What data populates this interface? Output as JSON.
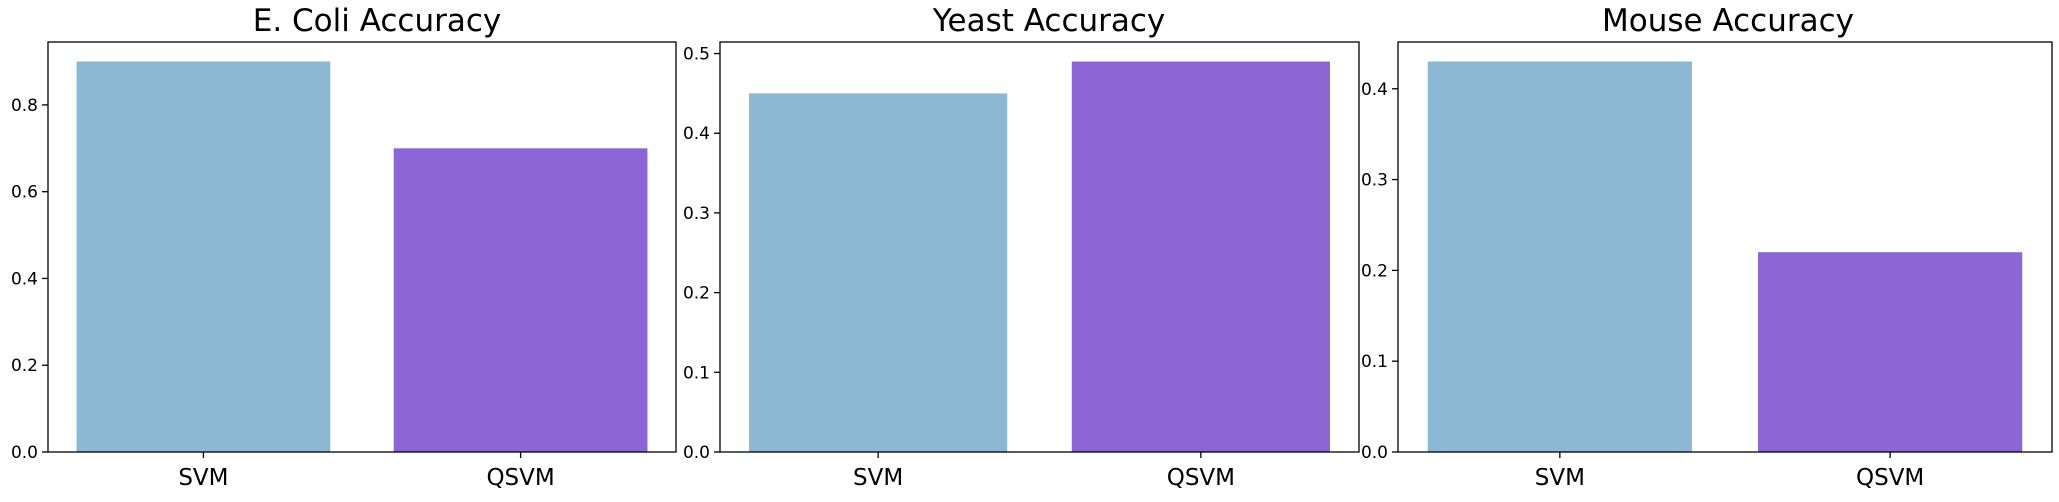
{
  "chart_data": [
    {
      "type": "bar",
      "title": "E. Coli Accuracy",
      "categories": [
        "SVM",
        "QSVM"
      ],
      "values": [
        0.9,
        0.7
      ],
      "colors": [
        "#8cb8d3",
        "#8c66d4"
      ],
      "xlabel": "",
      "ylabel": "",
      "ylim": [
        0,
        0.945
      ],
      "yticks": [
        0.0,
        0.2,
        0.4,
        0.6,
        0.8
      ],
      "ytick_labels": [
        "0.0",
        "0.2",
        "0.4",
        "0.6",
        "0.8"
      ],
      "grid": false
    },
    {
      "type": "bar",
      "title": "Yeast Accuracy",
      "categories": [
        "SVM",
        "QSVM"
      ],
      "values": [
        0.45,
        0.49
      ],
      "colors": [
        "#8cb8d3",
        "#8c66d4"
      ],
      "xlabel": "",
      "ylabel": "",
      "ylim": [
        0,
        0.5145
      ],
      "yticks": [
        0.0,
        0.1,
        0.2,
        0.3,
        0.4,
        0.5
      ],
      "ytick_labels": [
        "0.0",
        "0.1",
        "0.2",
        "0.3",
        "0.4",
        "0.5"
      ],
      "grid": false
    },
    {
      "type": "bar",
      "title": "Mouse Accuracy",
      "categories": [
        "SVM",
        "QSVM"
      ],
      "values": [
        0.43,
        0.22
      ],
      "colors": [
        "#8cb8d3",
        "#8c66d4"
      ],
      "xlabel": "",
      "ylabel": "",
      "ylim": [
        0,
        0.4515
      ],
      "yticks": [
        0.0,
        0.1,
        0.2,
        0.3,
        0.4
      ],
      "ytick_labels": [
        "0.0",
        "0.1",
        "0.2",
        "0.3",
        "0.4"
      ],
      "grid": false
    }
  ]
}
